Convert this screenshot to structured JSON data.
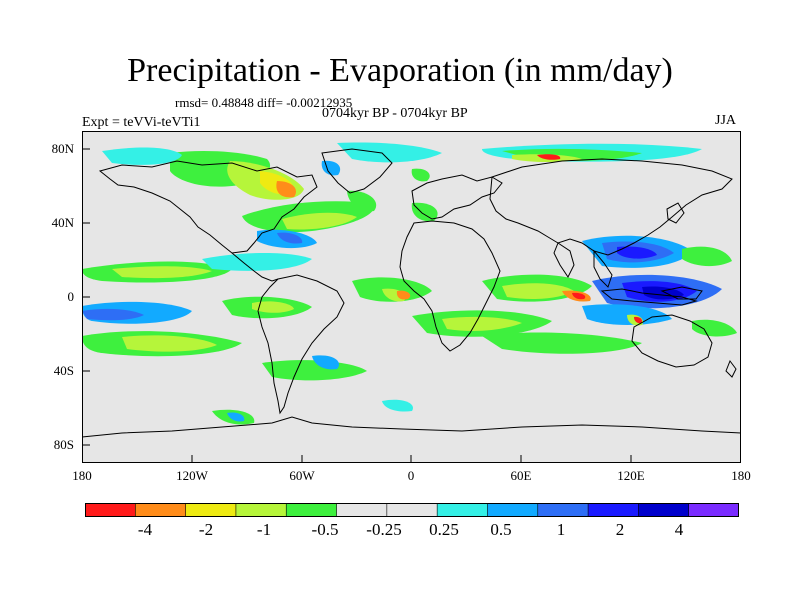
{
  "title": "Precipitation - Evaporation (in mm/day)",
  "stats_text": "rmsd= 0.48848 diff= -0.00212935",
  "period_text": "0704kyr BP - 0704kyr BP",
  "expt_text": "Expt = teVVi-teVTi1",
  "season_text": "JJA",
  "map": {
    "lat_ticks": [
      "80N",
      "40N",
      "0",
      "40S",
      "80S"
    ],
    "lon_ticks": [
      "180",
      "120W",
      "60W",
      "0",
      "60E",
      "120E",
      "180"
    ],
    "background_color": "#e6e6e6"
  },
  "colorbar": {
    "colors": [
      "#ff1a1a",
      "#ff8c1a",
      "#eeea12",
      "#b6f53a",
      "#3ef03e",
      "#e6e6e6",
      "#e6e6e6",
      "#34f0e6",
      "#12aaff",
      "#2e6ef5",
      "#1a1aff",
      "#0000cc",
      "#7a2bff"
    ],
    "labels": [
      "-4",
      "-2",
      "-1",
      "-0.5",
      "-0.25",
      "0.25",
      "0.5",
      "1",
      "2",
      "4"
    ]
  }
}
